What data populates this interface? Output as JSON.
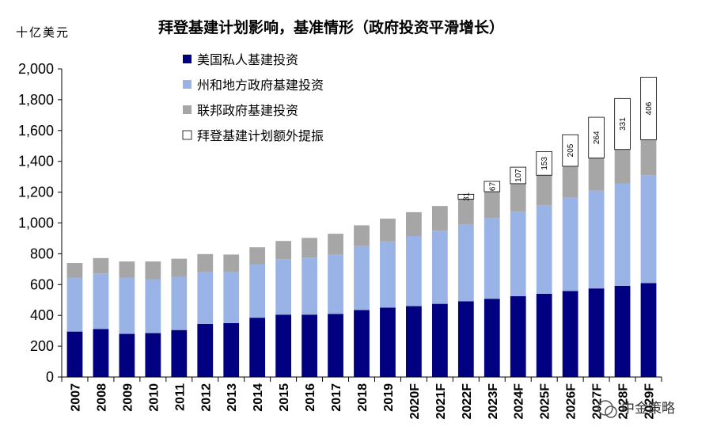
{
  "chart_data": {
    "type": "bar",
    "stacked": true,
    "title": "拜登基建计划影响，基准情形（政府投资平滑增长）",
    "unit_label": "十亿美元",
    "ylim": [
      0,
      2000
    ],
    "ytick_step": 200,
    "ytick_labels": [
      "0",
      "200",
      "400",
      "600",
      "800",
      "1,000",
      "1,200",
      "1,400",
      "1,600",
      "1,800",
      "2,000"
    ],
    "categories": [
      "2007",
      "2008",
      "2009",
      "2010",
      "2011",
      "2012",
      "2013",
      "2014",
      "2015",
      "2016",
      "2017",
      "2018",
      "2019",
      "2020F",
      "2021F",
      "2022F",
      "2023F",
      "2024F",
      "2025F",
      "2026F",
      "2027F",
      "2028F",
      "2029F"
    ],
    "series": [
      {
        "name": "美国私人基建投资",
        "color": "#000080",
        "values": [
          295,
          312,
          280,
          285,
          305,
          345,
          350,
          385,
          405,
          405,
          410,
          435,
          450,
          460,
          475,
          492,
          508,
          525,
          540,
          558,
          575,
          592,
          610
        ]
      },
      {
        "name": "州和地方政府基建投资",
        "color": "#99b3e6",
        "values": [
          350,
          360,
          365,
          350,
          345,
          335,
          330,
          345,
          360,
          370,
          385,
          415,
          430,
          455,
          475,
          500,
          525,
          550,
          575,
          605,
          635,
          665,
          700
        ]
      },
      {
        "name": "联邦政府基建投资",
        "color": "#a6a6a6",
        "values": [
          95,
          100,
          105,
          115,
          118,
          118,
          115,
          112,
          118,
          128,
          135,
          135,
          148,
          155,
          160,
          163,
          170,
          180,
          195,
          205,
          212,
          220,
          230
        ]
      },
      {
        "name": "拜登基建计划额外提振",
        "color": "#ffffff",
        "values": [
          0,
          0,
          0,
          0,
          0,
          0,
          0,
          0,
          0,
          0,
          0,
          0,
          0,
          0,
          0,
          31,
          67,
          107,
          153,
          205,
          264,
          331,
          406
        ]
      }
    ],
    "data_labels": [
      "",
      "",
      "",
      "",
      "",
      "",
      "",
      "",
      "",
      "",
      "",
      "",
      "",
      "",
      "",
      "31",
      "67",
      "107",
      "153",
      "205",
      "264",
      "331",
      "406"
    ]
  },
  "watermark": "中金策略"
}
